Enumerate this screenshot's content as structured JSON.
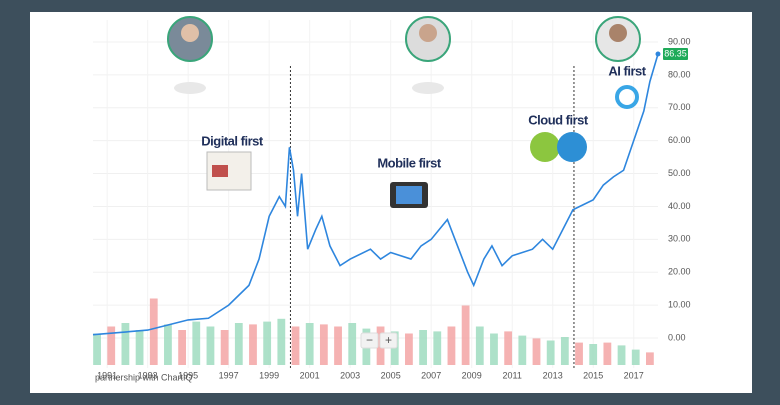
{
  "chart_data": {
    "type": "line",
    "annotations": [
      "Digital first",
      "Mobile first",
      "Cloud first",
      "AI first"
    ],
    "credit": "partnership with ChartIQ",
    "controls": {
      "zoom_out": "−",
      "zoom_in": "+"
    },
    "grid": true,
    "xlim": [
      1990.3,
      2018.2
    ],
    "xticks": [
      1991,
      1993,
      1995,
      1997,
      1999,
      2001,
      2003,
      2005,
      2007,
      2009,
      2011,
      2013,
      2015,
      2017
    ],
    "ylim": [
      0,
      90
    ],
    "yticks": [
      {
        "value": 0,
        "label": "0.00"
      },
      {
        "value": 10,
        "label": "10.00"
      },
      {
        "value": 20,
        "label": "20.00"
      },
      {
        "value": 30,
        "label": "30.00"
      },
      {
        "value": 40,
        "label": "40.00"
      },
      {
        "value": 50,
        "label": "50.00"
      },
      {
        "value": 60,
        "label": "60.00"
      },
      {
        "value": 70,
        "label": "70.00"
      },
      {
        "value": 80,
        "label": "80.00"
      },
      {
        "value": 90,
        "label": "90.00"
      }
    ],
    "event_lines": [
      2000.05,
      2014.05
    ],
    "series": [
      {
        "color": "#2e86de",
        "x": [
          1990.3,
          1993,
          1995,
          1996,
          1997,
          1998,
          1998.5,
          1999,
          1999.5,
          1999.8,
          2000.0,
          2000.2,
          2000.4,
          2000.6,
          2000.9,
          2001.3,
          2001.6,
          2002,
          2002.5,
          2003,
          2004,
          2004.5,
          2005,
          2006,
          2006.5,
          2007,
          2007.8,
          2008.3,
          2008.8,
          2009.1,
          2009.6,
          2010,
          2010.5,
          2011,
          2012,
          2012.5,
          2013,
          2013.5,
          2014,
          2015,
          2015.5,
          2016,
          2016.5,
          2017,
          2017.5,
          2017.8,
          2018.2
        ],
        "values": [
          1,
          2.4,
          5.5,
          6,
          10,
          16,
          24,
          37,
          43,
          40,
          58,
          51,
          37,
          50,
          27,
          33,
          37,
          28,
          22,
          24,
          27,
          24,
          26,
          24,
          28,
          30,
          36,
          28,
          20,
          16,
          24,
          28,
          22,
          25,
          27,
          30,
          27,
          33,
          39,
          42,
          46.5,
          49,
          51,
          60,
          69,
          78,
          86.35
        ]
      }
    ],
    "volume": {
      "axis": "y2",
      "up_color": "#9fdcc0",
      "down_color": "#f3a5a5",
      "x": [
        1990.5,
        1991.2,
        1991.9,
        1992.6,
        1993.3,
        1994.0,
        1994.7,
        1995.4,
        1996.1,
        1996.8,
        1997.5,
        1998.2,
        1998.9,
        1999.6,
        2000.3,
        2001.0,
        2001.7,
        2002.4,
        2003.1,
        2003.8,
        2004.5,
        2005.2,
        2005.9,
        2006.6,
        2007.3,
        2008.0,
        2008.7,
        2009.4,
        2010.1,
        2010.8,
        2011.5,
        2012.2,
        2012.9,
        2013.6,
        2014.3,
        2015.0,
        2015.7,
        2016.4,
        2017.1,
        2017.8
      ],
      "values": [
        45,
        55,
        60,
        50,
        95,
        58,
        50,
        62,
        55,
        50,
        60,
        58,
        62,
        66,
        55,
        60,
        58,
        55,
        60,
        52,
        55,
        48,
        45,
        50,
        48,
        55,
        85,
        55,
        45,
        48,
        42,
        38,
        35,
        40,
        32,
        30,
        32,
        28,
        22,
        18
      ],
      "up": [
        true,
        false,
        true,
        true,
        false,
        true,
        false,
        true,
        true,
        false,
        true,
        false,
        true,
        true,
        false,
        true,
        false,
        false,
        true,
        true,
        false,
        true,
        false,
        true,
        true,
        false,
        false,
        true,
        true,
        false,
        true,
        false,
        true,
        true,
        false,
        true,
        false,
        true,
        true,
        false
      ]
    },
    "y2lim": [
      0,
      100
    ]
  }
}
